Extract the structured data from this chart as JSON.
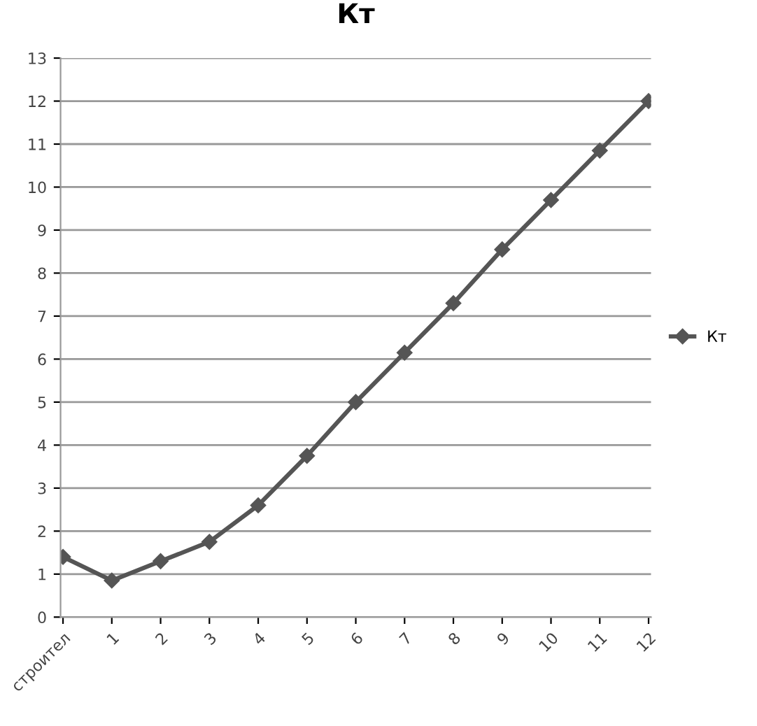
{
  "chart_data": {
    "type": "line",
    "title": "Кт",
    "categories": [
      "строител",
      "1",
      "2",
      "3",
      "4",
      "5",
      "6",
      "7",
      "8",
      "9",
      "10",
      "11",
      "12"
    ],
    "series": [
      {
        "name": "Кт",
        "color": "#555555",
        "values": [
          1.4,
          0.85,
          1.3,
          1.75,
          2.6,
          3.75,
          5.0,
          6.15,
          7.3,
          8.55,
          9.7,
          10.85,
          12.0
        ]
      }
    ],
    "ylim": [
      0,
      13
    ],
    "yticks": [
      0,
      1,
      2,
      3,
      4,
      5,
      6,
      7,
      8,
      9,
      10,
      11,
      12,
      13
    ],
    "grid": "y",
    "legend": "right",
    "marker": "diamond",
    "line_style": "solid"
  }
}
